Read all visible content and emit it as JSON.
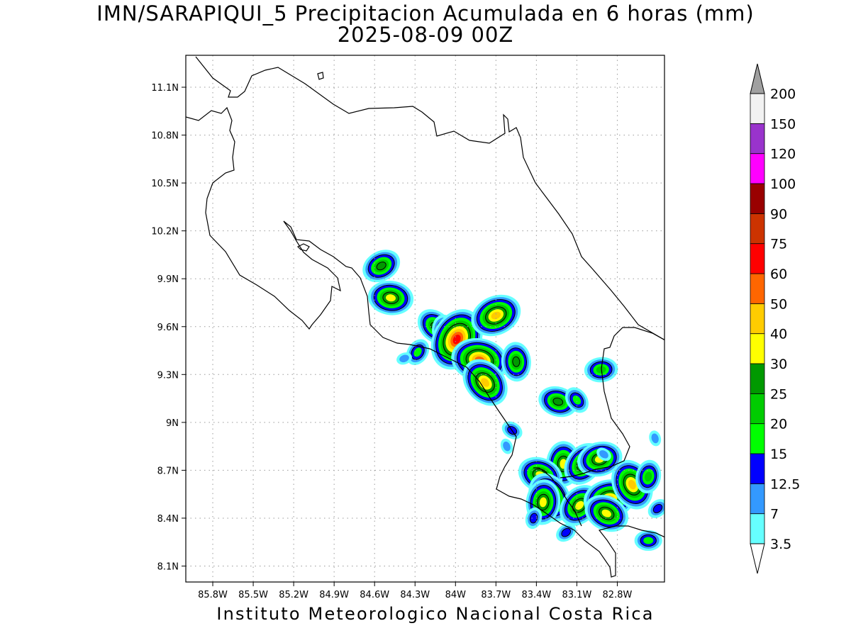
{
  "title": "IMN/SARAPIQUI_5 Precipitacion Acumulada en 6 horas (mm)",
  "subtitle": "2025-08-09 00Z",
  "footer": "Instituto Meteorologico Nacional Costa Rica",
  "map": {
    "lon_range": [
      -86.0,
      -82.45
    ],
    "lat_range": [
      8.0,
      11.3
    ],
    "lon_ticks": [
      "85.8W",
      "85.5W",
      "85.2W",
      "84.9W",
      "84.6W",
      "84.3W",
      "84W",
      "83.7W",
      "83.4W",
      "83.1W",
      "82.8W"
    ],
    "lon_values": [
      -85.8,
      -85.5,
      -85.2,
      -84.9,
      -84.6,
      -84.3,
      -84.0,
      -83.7,
      -83.4,
      -83.1,
      -82.8
    ],
    "lat_ticks": [
      "8.1N",
      "8.4N",
      "8.7N",
      "9N",
      "9.3N",
      "9.6N",
      "9.9N",
      "10.2N",
      "10.5N",
      "10.8N",
      "11.1N"
    ],
    "lat_values": [
      8.1,
      8.4,
      8.7,
      9.0,
      9.3,
      9.6,
      9.9,
      10.2,
      10.5,
      10.8,
      11.1
    ],
    "grid": true
  },
  "colorbar": {
    "labels": [
      "3.5",
      "7",
      "12.5",
      "15",
      "20",
      "25",
      "30",
      "40",
      "50",
      "60",
      "75",
      "90",
      "100",
      "120",
      "150",
      "200"
    ],
    "colors": [
      "#66ffff",
      "#3399ff",
      "#0000ff",
      "#00ff00",
      "#00cc00",
      "#009900",
      "#ffff00",
      "#ffcc00",
      "#ff6600",
      "#ff0000",
      "#cc3300",
      "#990000",
      "#ff00ff",
      "#9933cc",
      "#f2f2f2",
      "#a0a0a0"
    ],
    "under_color": "#ffffff",
    "over_color": "#a0a0a0"
  },
  "precip_cells": [
    {
      "lon": -84.55,
      "lat": 9.98,
      "value": 25
    },
    {
      "lon": -84.48,
      "lat": 9.78,
      "value": 30
    },
    {
      "lon": -84.15,
      "lat": 9.6,
      "value": 25
    },
    {
      "lon": -84.08,
      "lat": 9.57,
      "value": 20
    },
    {
      "lon": -83.99,
      "lat": 9.52,
      "value": 60
    },
    {
      "lon": -83.7,
      "lat": 9.67,
      "value": 40
    },
    {
      "lon": -83.82,
      "lat": 9.39,
      "value": 50
    },
    {
      "lon": -83.78,
      "lat": 9.25,
      "value": 40
    },
    {
      "lon": -83.55,
      "lat": 9.38,
      "value": 25
    },
    {
      "lon": -84.28,
      "lat": 9.44,
      "value": 15
    },
    {
      "lon": -84.38,
      "lat": 9.4,
      "value": 7
    },
    {
      "lon": -83.24,
      "lat": 9.13,
      "value": 25
    },
    {
      "lon": -83.1,
      "lat": 9.14,
      "value": 15
    },
    {
      "lon": -83.2,
      "lat": 8.74,
      "value": 30
    },
    {
      "lon": -83.05,
      "lat": 8.74,
      "value": 30
    },
    {
      "lon": -82.93,
      "lat": 8.77,
      "value": 30
    },
    {
      "lon": -83.37,
      "lat": 8.67,
      "value": 30
    },
    {
      "lon": -83.3,
      "lat": 8.53,
      "value": 40
    },
    {
      "lon": -83.35,
      "lat": 8.5,
      "value": 30
    },
    {
      "lon": -83.08,
      "lat": 8.48,
      "value": 30
    },
    {
      "lon": -82.86,
      "lat": 8.52,
      "value": 40
    },
    {
      "lon": -82.88,
      "lat": 8.43,
      "value": 30
    },
    {
      "lon": -82.69,
      "lat": 8.61,
      "value": 40
    },
    {
      "lon": -82.57,
      "lat": 8.66,
      "value": 20
    },
    {
      "lon": -82.5,
      "lat": 8.46,
      "value": 12.5
    },
    {
      "lon": -82.92,
      "lat": 9.33,
      "value": 20
    },
    {
      "lon": -83.58,
      "lat": 8.95,
      "value": 12.5
    },
    {
      "lon": -83.62,
      "lat": 8.85,
      "value": 7
    },
    {
      "lon": -83.42,
      "lat": 8.4,
      "value": 12.5
    },
    {
      "lon": -83.18,
      "lat": 8.31,
      "value": 12.5
    },
    {
      "lon": -82.57,
      "lat": 8.26,
      "value": 15
    },
    {
      "lon": -82.9,
      "lat": 8.8,
      "value": 7
    },
    {
      "lon": -82.52,
      "lat": 8.9,
      "value": 7
    }
  ]
}
